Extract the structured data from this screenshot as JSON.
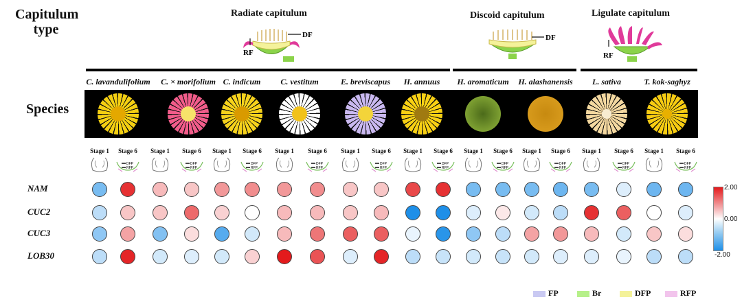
{
  "row_labels": {
    "capitulum_line1": "Capitulum",
    "capitulum_line2": "type",
    "species": "Species"
  },
  "groups": [
    {
      "id": "radiate",
      "title": "Radiate capitulum",
      "labels": [
        "DF",
        "RF"
      ]
    },
    {
      "id": "discoid",
      "title": "Discoid capitulum",
      "labels": [
        "DF"
      ]
    },
    {
      "id": "ligulate",
      "title": "Ligulate capitulum",
      "labels": [
        "RF"
      ]
    }
  ],
  "species": [
    {
      "name": "C. lavandulifolium",
      "petal_color": "#f4cf12",
      "center_color": "#e4a800",
      "kind": "radiate"
    },
    {
      "name": "C. × morifolium",
      "petal_color": "#f25c8a",
      "center_color": "#f7e36a",
      "kind": "radiate"
    },
    {
      "name": "C. indicum",
      "petal_color": "#f6d21c",
      "center_color": "#d99a00",
      "kind": "radiate"
    },
    {
      "name": "C. vestitum",
      "petal_color": "#ffffff",
      "center_color": "#f2c21a",
      "kind": "radiate"
    },
    {
      "name": "E. breviscapus",
      "petal_color": "#c9b8f0",
      "center_color": "#f3d43a",
      "kind": "radiate"
    },
    {
      "name": "H. annuus",
      "petal_color": "#f8d014",
      "center_color": "#a07a10",
      "kind": "radiate"
    },
    {
      "name": "H. aromaticum",
      "petal_color": "#7ea032",
      "center_color": "#4c6b1a",
      "kind": "discoid"
    },
    {
      "name": "H. alashanensis",
      "petal_color": "#d79a1c",
      "center_color": "#c78a10",
      "kind": "discoid"
    },
    {
      "name": "L. sativa",
      "petal_color": "#f4d8a0",
      "center_color": "#f8ecd0",
      "kind": "ligulate"
    },
    {
      "name": "T. kok-saghyz",
      "petal_color": "#f7cc12",
      "center_color": "#e8b000",
      "kind": "ligulate"
    }
  ],
  "stages": [
    "Stage 1",
    "Stage 6"
  ],
  "diagram_labels": [
    "DFP",
    "RFP"
  ],
  "genes": [
    "NAM",
    "CUC2",
    "CUC3",
    "LOB30"
  ],
  "expression": [
    [
      -1.2,
      1.8,
      0.6,
      0.5,
      0.9,
      1.0,
      0.9,
      1.0,
      0.5,
      0.5,
      1.6,
      1.8,
      -1.2,
      -1.2,
      -1.2,
      -1.3,
      -1.2,
      -0.3,
      -1.3,
      -1.3
    ],
    [
      -0.6,
      0.5,
      0.5,
      1.3,
      0.4,
      0.0,
      0.6,
      0.6,
      0.5,
      0.6,
      -2.0,
      -2.0,
      -0.3,
      0.2,
      -0.4,
      -0.6,
      1.8,
      1.4,
      0.0,
      -0.3
    ],
    [
      -1.0,
      0.8,
      -1.1,
      0.3,
      -1.5,
      -0.4,
      0.6,
      1.2,
      1.4,
      1.4,
      -0.2,
      -1.9,
      -1.0,
      -0.6,
      0.8,
      0.9,
      0.6,
      -0.4,
      0.5,
      0.3
    ],
    [
      -0.6,
      1.9,
      -0.4,
      -0.3,
      -0.4,
      0.4,
      2.0,
      1.5,
      -0.3,
      1.9,
      -0.6,
      -0.5,
      -0.4,
      -0.5,
      -0.4,
      -0.3,
      -0.3,
      -0.2,
      -0.6,
      -0.6
    ]
  ],
  "scale": {
    "max_label": "2.00",
    "mid_label": "0.00",
    "min_label": "-2.00"
  },
  "legend": [
    {
      "label": "FP",
      "color": "#c9c9f2"
    },
    {
      "label": "Br",
      "color": "#b6f08a"
    },
    {
      "label": "DFP",
      "color": "#f4f29a"
    },
    {
      "label": "RFP",
      "color": "#f2c4ec"
    }
  ]
}
